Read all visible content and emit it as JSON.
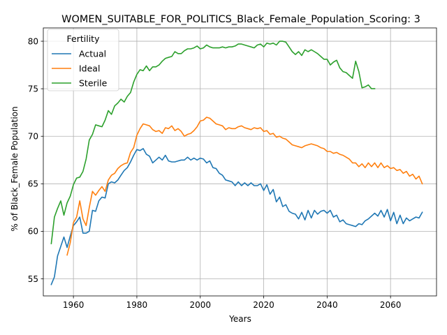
{
  "chart_data": {
    "type": "line",
    "title": "WOMEN_SUITABLE_FOR_POLITICS_Black_Female_Population_Scoring: 3",
    "xlabel": "Years",
    "ylabel": "% of Black_Female Population",
    "xlim": [
      1950.5,
      2074.5
    ],
    "ylim": [
      53.2,
      81.4
    ],
    "xticks": [
      1960,
      1980,
      2000,
      2020,
      2040,
      2060
    ],
    "yticks": [
      55,
      60,
      65,
      70,
      75,
      80
    ],
    "grid": true,
    "legend": {
      "title": "Fertility",
      "position": "upper left"
    },
    "series": [
      {
        "name": "Actual",
        "color": "#1f77b4",
        "x": [
          1953,
          1954,
          1955,
          1957,
          1958,
          1959,
          1960,
          1961,
          1962,
          1963,
          1964,
          1965,
          1966,
          1967,
          1968,
          1969,
          1970,
          1971,
          1972,
          1973,
          1974,
          1975,
          1976,
          1977,
          1978,
          1979,
          1980,
          1981,
          1982,
          1983,
          1984,
          1985,
          1986,
          1987,
          1988,
          1989,
          1990,
          1991,
          1992,
          1993,
          1994,
          1995,
          1996,
          1997,
          1998,
          1999,
          2000,
          2001,
          2002,
          2003,
          2004,
          2005,
          2006,
          2007,
          2008,
          2009,
          2010,
          2011,
          2012,
          2013,
          2014,
          2015,
          2016,
          2017,
          2018,
          2019,
          2020,
          2021,
          2022,
          2023,
          2024,
          2025,
          2026,
          2027,
          2028,
          2029,
          2030,
          2031,
          2032,
          2033,
          2034,
          2035,
          2036,
          2037,
          2038,
          2039,
          2040,
          2041,
          2042,
          2043,
          2044,
          2045,
          2046,
          2047,
          2048,
          2049,
          2050,
          2051,
          2052,
          2053,
          2054,
          2055,
          2056,
          2057,
          2058,
          2059,
          2060,
          2061,
          2062,
          2063,
          2064,
          2065,
          2066,
          2067,
          2068,
          2069,
          2070
        ],
        "y": [
          54.4,
          55.2,
          57.4,
          59.4,
          58.3,
          59.5,
          60.6,
          61.0,
          61.5,
          59.8,
          59.8,
          60.0,
          62.2,
          62.1,
          63.2,
          63.6,
          63.5,
          65.0,
          65.2,
          65.1,
          65.4,
          65.9,
          66.4,
          66.7,
          67.3,
          68.0,
          68.6,
          68.5,
          68.7,
          68.1,
          67.9,
          67.2,
          67.5,
          67.8,
          67.5,
          68.0,
          67.4,
          67.3,
          67.3,
          67.4,
          67.5,
          67.5,
          67.8,
          67.5,
          67.7,
          67.5,
          67.7,
          67.6,
          67.2,
          67.4,
          66.7,
          66.6,
          66.1,
          65.9,
          65.4,
          65.3,
          65.2,
          64.8,
          65.2,
          64.8,
          65.1,
          64.8,
          65.1,
          64.8,
          64.8,
          65.0,
          64.3,
          64.9,
          63.9,
          64.4,
          63.1,
          63.6,
          62.6,
          62.8,
          62.1,
          61.9,
          61.8,
          61.3,
          62.0,
          61.2,
          62.2,
          61.4,
          62.2,
          61.8,
          62.1,
          62.2,
          61.9,
          62.2,
          61.5,
          61.7,
          61.0,
          61.2,
          60.8,
          60.7,
          60.6,
          60.5,
          60.8,
          60.7,
          61.1,
          61.3,
          61.6,
          61.9,
          61.6,
          62.2,
          61.5,
          62.3,
          61.1,
          62.0,
          60.8,
          61.7,
          60.8,
          61.4,
          61.1,
          61.3,
          61.5,
          61.4,
          62.0
        ]
      },
      {
        "name": "Ideal",
        "color": "#ff7f0e",
        "x": [
          1958,
          1959,
          1960,
          1961,
          1962,
          1963,
          1964,
          1965,
          1966,
          1967,
          1968,
          1969,
          1970,
          1971,
          1972,
          1973,
          1974,
          1975,
          1976,
          1977,
          1978,
          1979,
          1980,
          1981,
          1982,
          1983,
          1984,
          1985,
          1986,
          1987,
          1988,
          1989,
          1990,
          1991,
          1992,
          1993,
          1994,
          1995,
          1996,
          1997,
          1998,
          1999,
          2000,
          2001,
          2002,
          2003,
          2004,
          2005,
          2006,
          2007,
          2008,
          2009,
          2010,
          2011,
          2012,
          2013,
          2014,
          2015,
          2016,
          2017,
          2018,
          2019,
          2020,
          2021,
          2022,
          2023,
          2024,
          2025,
          2026,
          2027,
          2028,
          2029,
          2030,
          2031,
          2032,
          2033,
          2034,
          2035,
          2036,
          2037,
          2038,
          2039,
          2040,
          2041,
          2042,
          2043,
          2044,
          2045,
          2046,
          2047,
          2048,
          2049,
          2050,
          2051,
          2052,
          2053,
          2054,
          2055,
          2056,
          2057,
          2058,
          2059,
          2060,
          2061,
          2062,
          2063,
          2064,
          2065,
          2066,
          2067,
          2068,
          2069,
          2070
        ],
        "y": [
          57.5,
          58.8,
          60.9,
          61.5,
          63.2,
          61.3,
          60.6,
          62.5,
          64.2,
          63.8,
          64.3,
          64.7,
          64.2,
          65.4,
          65.9,
          66.1,
          66.6,
          66.9,
          67.1,
          67.2,
          68.3,
          68.8,
          70.1,
          70.8,
          71.3,
          71.2,
          71.1,
          70.7,
          70.5,
          70.6,
          70.3,
          70.9,
          70.8,
          71.1,
          70.6,
          70.8,
          70.5,
          70.0,
          70.2,
          70.3,
          70.6,
          71.0,
          71.6,
          71.7,
          72.0,
          71.9,
          71.6,
          71.3,
          71.2,
          71.1,
          70.7,
          70.9,
          70.8,
          70.8,
          71.0,
          71.1,
          70.9,
          70.8,
          70.7,
          70.9,
          70.8,
          70.9,
          70.5,
          70.6,
          70.2,
          70.3,
          69.9,
          70.0,
          69.8,
          69.7,
          69.4,
          69.1,
          69.0,
          68.9,
          68.8,
          69.0,
          69.1,
          69.2,
          69.1,
          69.0,
          68.8,
          68.7,
          68.4,
          68.4,
          68.2,
          68.3,
          68.1,
          68.0,
          67.8,
          67.6,
          67.2,
          67.2,
          66.8,
          67.1,
          66.7,
          67.2,
          66.8,
          67.2,
          66.7,
          67.2,
          66.7,
          66.9,
          66.6,
          66.7,
          66.4,
          66.5,
          66.1,
          66.3,
          65.8,
          66.0,
          65.5,
          65.8,
          65.0
        ]
      },
      {
        "name": "Sterile",
        "color": "#2ca02c",
        "x": [
          1953,
          1954,
          1955,
          1956,
          1957,
          1958,
          1959,
          1960,
          1961,
          1962,
          1963,
          1964,
          1965,
          1966,
          1967,
          1968,
          1969,
          1970,
          1971,
          1972,
          1973,
          1974,
          1975,
          1976,
          1977,
          1978,
          1979,
          1980,
          1981,
          1982,
          1983,
          1984,
          1985,
          1986,
          1987,
          1988,
          1989,
          1990,
          1991,
          1992,
          1993,
          1994,
          1995,
          1996,
          1997,
          1998,
          1999,
          2000,
          2001,
          2002,
          2003,
          2004,
          2005,
          2006,
          2007,
          2008,
          2009,
          2010,
          2011,
          2012,
          2013,
          2014,
          2015,
          2016,
          2017,
          2018,
          2019,
          2020,
          2021,
          2022,
          2023,
          2024,
          2025,
          2026,
          2027,
          2028,
          2029,
          2030,
          2031,
          2032,
          2033,
          2034,
          2035,
          2036,
          2037,
          2038,
          2039,
          2040,
          2041,
          2042,
          2043,
          2044,
          2045,
          2046,
          2047,
          2048,
          2049,
          2050,
          2051,
          2052,
          2053,
          2054,
          2055
        ],
        "y": [
          58.7,
          61.5,
          62.4,
          63.2,
          61.7,
          63.0,
          63.7,
          64.9,
          65.6,
          65.7,
          66.3,
          67.6,
          69.6,
          70.2,
          71.2,
          71.1,
          71.0,
          71.7,
          72.7,
          72.3,
          73.2,
          73.5,
          73.9,
          73.6,
          74.2,
          74.6,
          75.7,
          76.5,
          77.0,
          76.9,
          77.4,
          76.9,
          77.3,
          77.3,
          77.5,
          77.9,
          78.2,
          78.3,
          78.4,
          78.9,
          78.7,
          78.7,
          79.0,
          79.2,
          79.2,
          79.3,
          79.5,
          79.2,
          79.3,
          79.6,
          79.4,
          79.3,
          79.3,
          79.3,
          79.4,
          79.3,
          79.4,
          79.4,
          79.5,
          79.7,
          79.7,
          79.6,
          79.5,
          79.4,
          79.3,
          79.6,
          79.7,
          79.4,
          79.8,
          79.7,
          79.8,
          79.6,
          80.0,
          80.0,
          79.9,
          79.4,
          78.9,
          78.6,
          78.9,
          78.5,
          79.1,
          78.9,
          79.1,
          78.9,
          78.7,
          78.4,
          78.1,
          78.1,
          77.5,
          77.8,
          78.0,
          77.2,
          76.8,
          76.7,
          76.4,
          76.1,
          77.9,
          76.8,
          75.1,
          75.2,
          75.4,
          75.0,
          75.0
        ]
      }
    ]
  }
}
